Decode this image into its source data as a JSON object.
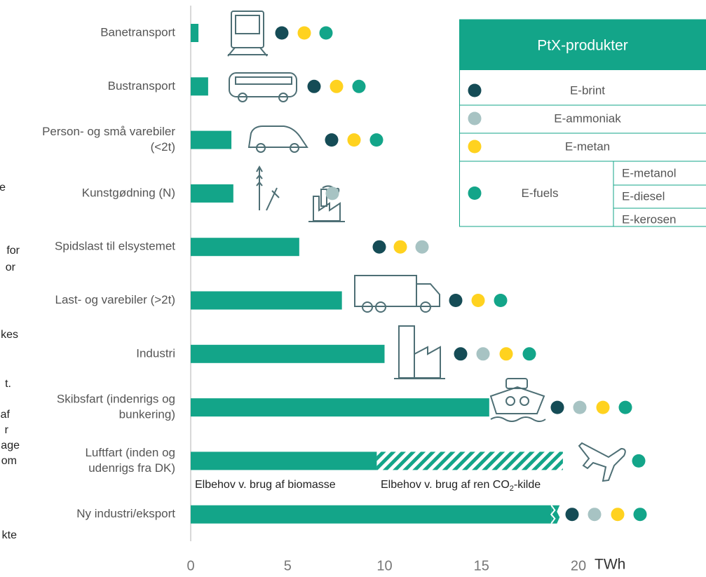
{
  "chart_data": {
    "type": "bar",
    "categories": [
      [
        "Banetransport"
      ],
      [
        "Bustransport"
      ],
      [
        "Person- og små varebiler",
        "(<2t)"
      ],
      [
        "Kunstgødning (N)"
      ],
      [
        "Spidslast til elsystemet"
      ],
      [
        "Last- og varebiler (>2t)"
      ],
      [
        "Industri"
      ],
      [
        "Skibsfart (indenrigs og",
        "bunkering)"
      ],
      [
        "Luftfart (inden og",
        "udenrigs fra DK)"
      ],
      [
        "Ny industri/eksport"
      ]
    ],
    "series": [
      {
        "name": "Elbehov v. brug af biomasse",
        "color": "#13a589",
        "values": [
          0.4,
          0.9,
          2.1,
          2.2,
          5.6,
          7.8,
          10.0,
          15.4,
          9.6,
          18.6
        ]
      },
      {
        "name": "Elbehov v. brug af ren CO2-kilde",
        "color": "#13a589",
        "hatched": true,
        "values": [
          null,
          null,
          null,
          null,
          null,
          null,
          null,
          null,
          9.6,
          null
        ]
      }
    ],
    "annotations": [
      [
        "Elbehov v. brug af biomasse"
      ],
      [
        "Elbehov v. brug af ren CO",
        "2",
        "-kilde"
      ]
    ],
    "x_unit": "TWh",
    "xlim": [
      0,
      20
    ],
    "xticks": [
      0,
      5,
      10,
      15,
      20
    ],
    "legend": {
      "title": "PtX-produkter",
      "items": [
        {
          "name": "E-brint",
          "color": "#154c56"
        },
        {
          "name": "E-ammoniak",
          "color": "#a7c3c3"
        },
        {
          "name": "E-metan",
          "color": "#ffd21f"
        },
        {
          "name": "E-fuels",
          "color": "#13a589",
          "sub": [
            "E-metanol",
            "E-diesel",
            "E-kerosen"
          ]
        }
      ]
    },
    "products": [
      [
        "E-brint",
        "E-metan",
        "E-fuels"
      ],
      [
        "E-brint",
        "E-metan",
        "E-fuels"
      ],
      [
        "E-brint",
        "E-metan",
        "E-fuels"
      ],
      [
        "E-ammoniak"
      ],
      [
        "E-brint",
        "E-metan",
        "E-ammoniak"
      ],
      [
        "E-brint",
        "E-metan",
        "E-fuels"
      ],
      [
        "E-brint",
        "E-ammoniak",
        "E-metan",
        "E-fuels"
      ],
      [
        "E-brint",
        "E-ammoniak",
        "E-metan",
        "E-fuels"
      ],
      [
        "E-fuels"
      ],
      [
        "E-brint",
        "E-ammoniak",
        "E-metan",
        "E-fuels"
      ]
    ],
    "fragments": [
      "e",
      "for",
      "or",
      "kes",
      "t.",
      "af",
      "r",
      "age",
      "om",
      "kte"
    ]
  }
}
